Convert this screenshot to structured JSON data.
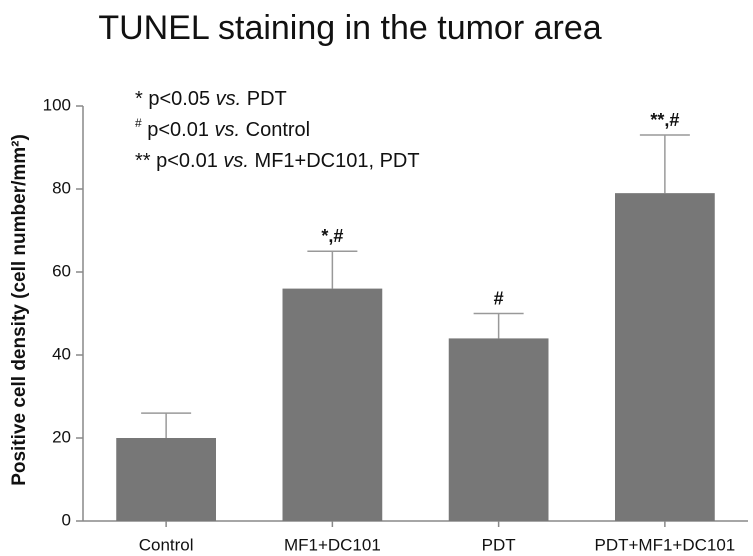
{
  "chart_data": {
    "type": "bar",
    "title": "TUNEL staining in the tumor area",
    "y_label": "Positive cell density (cell number/mm²)",
    "categories": [
      "Control",
      "MF1+DC101",
      "PDT",
      "PDT+MF1+DC101"
    ],
    "values": [
      20,
      56,
      44,
      79
    ],
    "errors": [
      6,
      9,
      6,
      14
    ],
    "significance": [
      null,
      "*,#",
      "#",
      "**,#"
    ],
    "color": "#777777",
    "ylim": [
      0,
      100
    ],
    "yticks": [
      0,
      20,
      40,
      60,
      80,
      100
    ],
    "notes": [
      [
        "* p<0.05 ",
        "vs.",
        " PDT"
      ],
      [
        "#",
        " p<0.01 ",
        "vs.",
        " Control"
      ],
      [
        "** p<0.01 ",
        "vs.",
        " MF1+DC101, PDT"
      ]
    ]
  }
}
